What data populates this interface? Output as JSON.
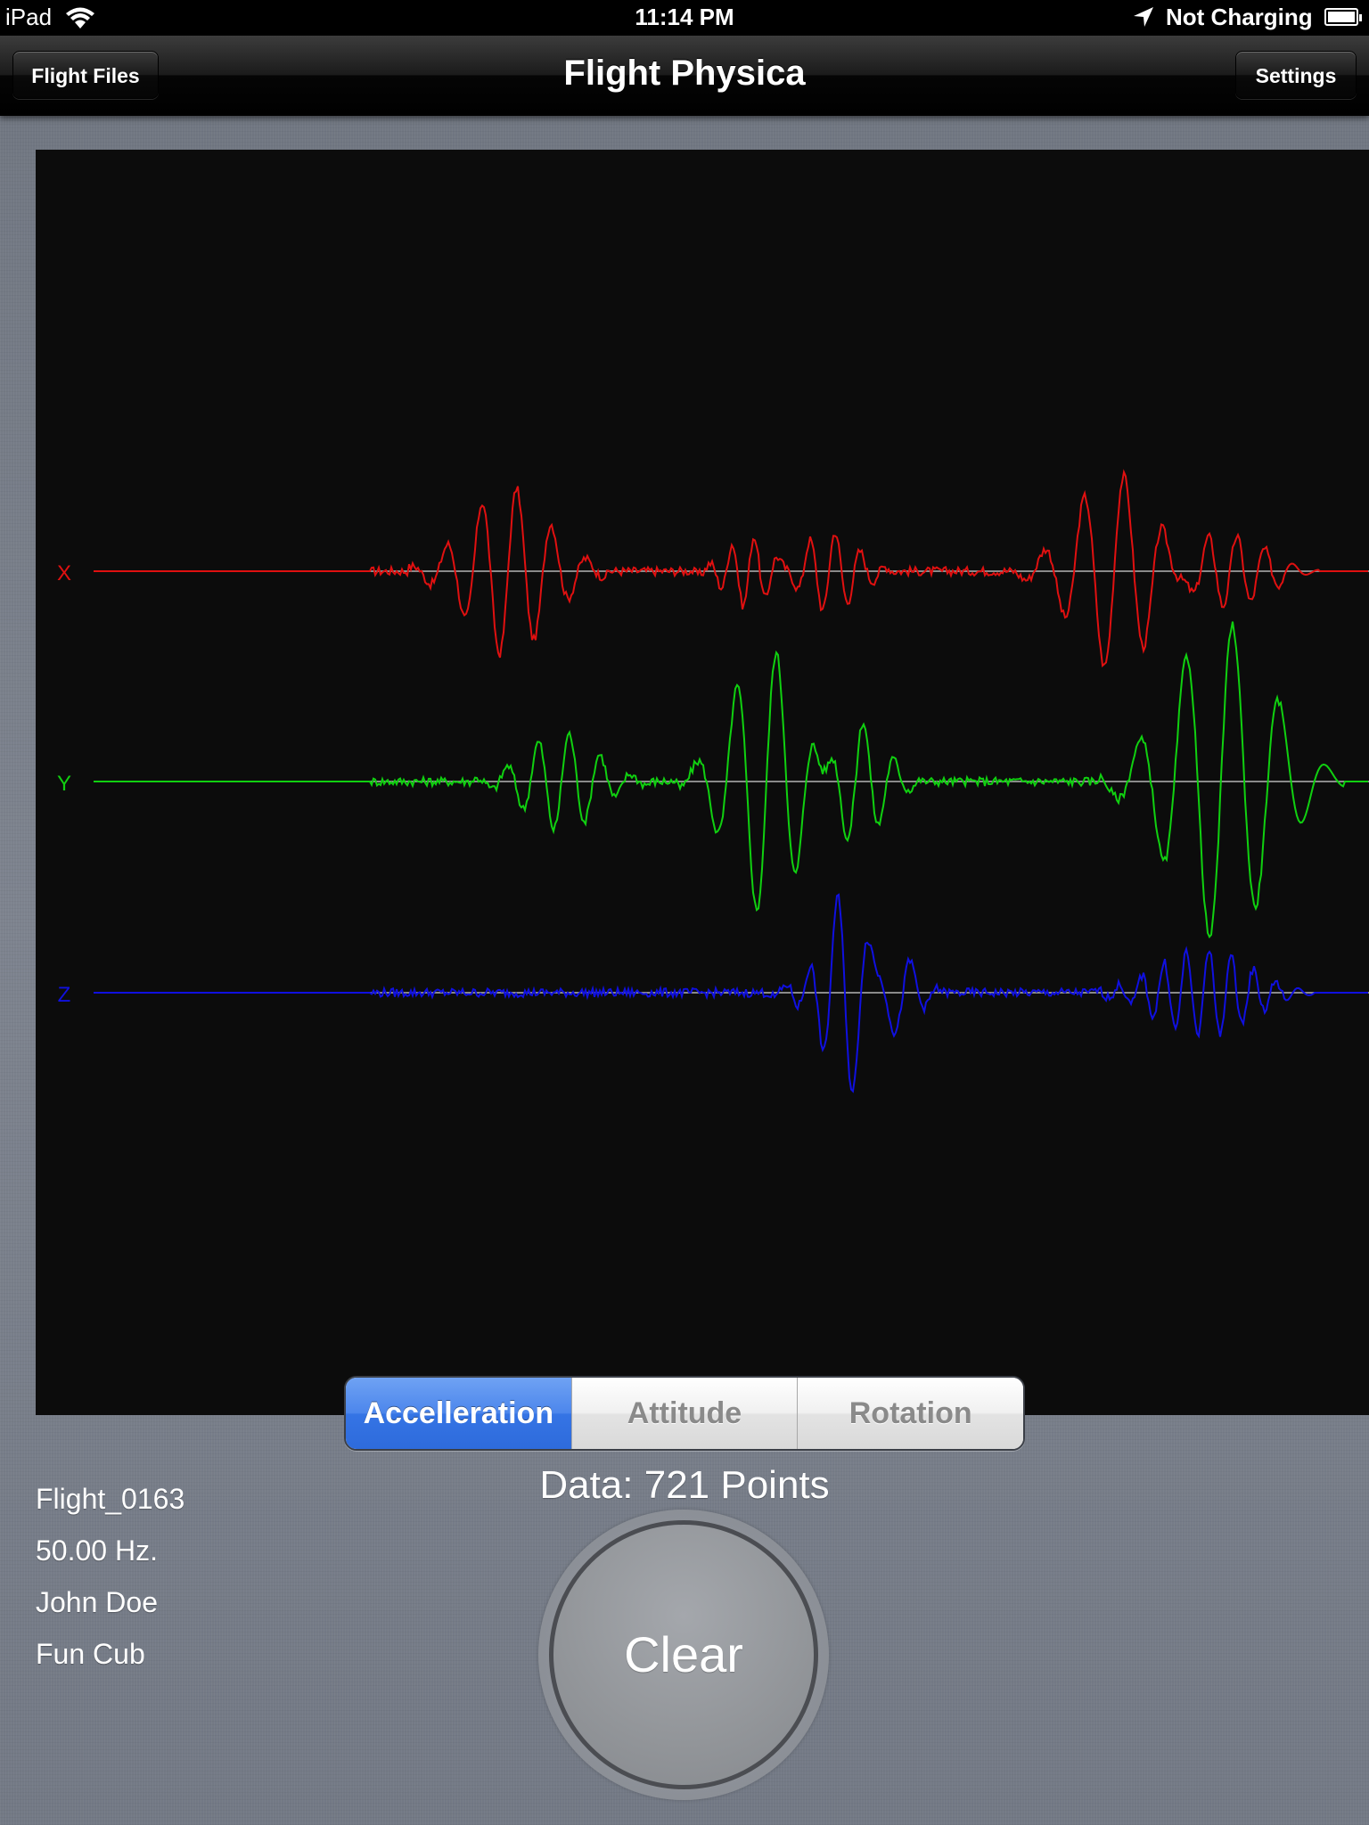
{
  "status_bar": {
    "carrier": "iPad",
    "time": "11:14 PM",
    "charging_text": "Not Charging",
    "icons": [
      "wifi-icon",
      "location-arrow-icon",
      "battery-icon"
    ]
  },
  "nav": {
    "title": "Flight Physica",
    "left_button": "Flight Files",
    "right_button": "Settings"
  },
  "graph": {
    "axis_labels": [
      "X",
      "Y",
      "Z"
    ],
    "colors": {
      "X": "#e01010",
      "Y": "#10d010",
      "Z": "#1010e0",
      "baseline": "#8a8a8a",
      "background": "#0c0c0c"
    }
  },
  "segments": {
    "items": [
      "Accelleration",
      "Attitude",
      "Rotation"
    ],
    "selected": "Accelleration"
  },
  "data_count": "Data: 721 Points",
  "flight_info": {
    "name": "Flight_0163",
    "rate": "50.00 Hz.",
    "pilot": "John Doe",
    "aircraft": "Fun Cub"
  },
  "clear_button": "Clear"
}
